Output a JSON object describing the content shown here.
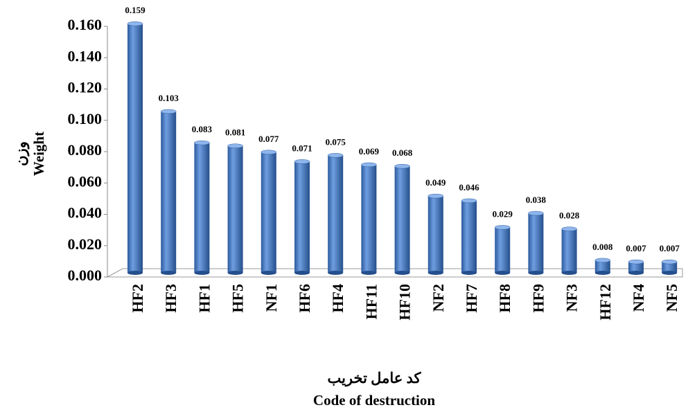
{
  "chart_data": {
    "type": "bar",
    "categories": [
      "HF2",
      "HF3",
      "HF1",
      "HF5",
      "NF1",
      "HF6",
      "HF4",
      "HF11",
      "HF10",
      "NF2",
      "HF7",
      "HF8",
      "HF9",
      "NF3",
      "HF12",
      "NF4",
      "NF5"
    ],
    "values": [
      0.159,
      0.103,
      0.083,
      0.081,
      0.077,
      0.071,
      0.075,
      0.069,
      0.068,
      0.049,
      0.046,
      0.029,
      0.038,
      0.028,
      0.008,
      0.007,
      0.007
    ],
    "color": "#4a7cc4",
    "ylim": [
      0,
      0.16
    ],
    "yticks": [
      {
        "value": 0,
        "label": "0.000"
      },
      {
        "value": 0.02,
        "label": "0.020"
      },
      {
        "value": 0.04,
        "label": "0.040"
      },
      {
        "value": 0.06,
        "label": "0.060"
      },
      {
        "value": 0.08,
        "label": "0.080"
      },
      {
        "value": 0.1,
        "label": "0.100"
      },
      {
        "value": 0.12,
        "label": "0.120"
      },
      {
        "value": 0.14,
        "label": "0.140"
      },
      {
        "value": 0.16,
        "label": "0.160"
      }
    ],
    "y_label": [
      "وزن",
      "Weight"
    ],
    "x_label": [
      "کد عامل تخریب",
      "Code of destruction"
    ]
  }
}
